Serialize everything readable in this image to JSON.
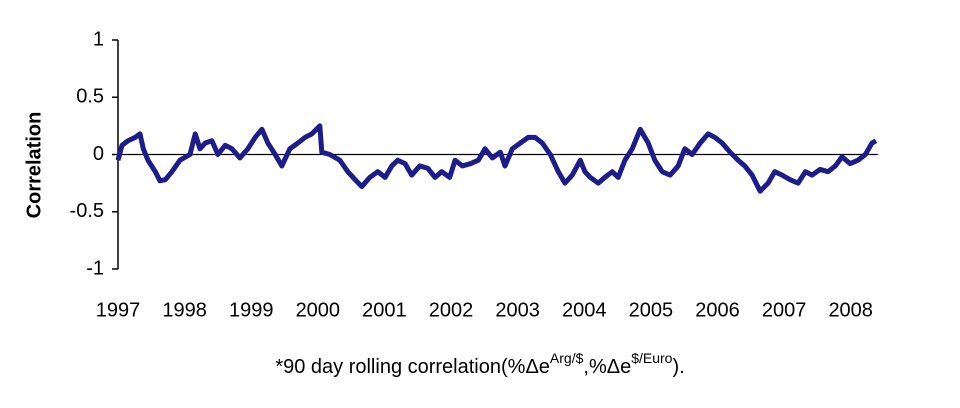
{
  "chart_data": {
    "type": "line",
    "ylabel": "Correlation",
    "caption": [
      "*90 day rolling correlation(%Δe",
      "Arg/$",
      ",%Δe",
      "$/Euro",
      ")."
    ],
    "x": [
      1997.0,
      1997.06,
      1997.15,
      1997.26,
      1997.33,
      1997.38,
      1997.45,
      1997.56,
      1997.63,
      1997.71,
      1997.81,
      1997.93,
      1998.08,
      1998.16,
      1998.23,
      1998.31,
      1998.41,
      1998.5,
      1998.61,
      1998.71,
      1998.83,
      1998.95,
      1999.06,
      1999.16,
      1999.25,
      1999.36,
      1999.46,
      1999.58,
      1999.7,
      1999.81,
      1999.91,
      2000.03,
      2000.06,
      2000.18,
      2000.33,
      2000.45,
      2000.56,
      2000.66,
      2000.78,
      2000.9,
      2001.01,
      2001.11,
      2001.2,
      2001.31,
      2001.41,
      2001.53,
      2001.65,
      2001.76,
      2001.86,
      2001.98,
      2002.06,
      2002.17,
      2002.29,
      2002.41,
      2002.51,
      2002.62,
      2002.74,
      2002.81,
      2002.92,
      2003.04,
      2003.16,
      2003.26,
      2003.37,
      2003.49,
      2003.61,
      2003.71,
      2003.82,
      2003.94,
      2004.01,
      2004.09,
      2004.21,
      2004.31,
      2004.42,
      2004.51,
      2004.61,
      2004.72,
      2004.84,
      2004.96,
      2005.06,
      2005.17,
      2005.29,
      2005.41,
      2005.51,
      2005.62,
      2005.74,
      2005.86,
      2005.96,
      2006.07,
      2006.19,
      2006.31,
      2006.41,
      2006.52,
      2006.64,
      2006.76,
      2006.86,
      2006.97,
      2007.09,
      2007.21,
      2007.32,
      2007.42,
      2007.54,
      2007.66,
      2007.77,
      2007.87,
      2007.99,
      2008.11,
      2008.22,
      2008.32,
      2008.38
    ],
    "series": [
      {
        "name": "Correlation",
        "color": "#1c1c8a",
        "values": [
          -0.05,
          0.08,
          0.12,
          0.15,
          0.18,
          0.05,
          -0.05,
          -0.15,
          -0.23,
          -0.22,
          -0.15,
          -0.05,
          0.0,
          0.18,
          0.05,
          0.1,
          0.12,
          0.0,
          0.08,
          0.05,
          -0.03,
          0.05,
          0.15,
          0.22,
          0.1,
          0.0,
          -0.1,
          0.05,
          0.1,
          0.15,
          0.18,
          0.25,
          0.02,
          0.0,
          -0.05,
          -0.15,
          -0.22,
          -0.28,
          -0.2,
          -0.15,
          -0.2,
          -0.1,
          -0.05,
          -0.08,
          -0.18,
          -0.1,
          -0.12,
          -0.2,
          -0.15,
          -0.2,
          -0.05,
          -0.1,
          -0.08,
          -0.05,
          0.05,
          -0.03,
          0.02,
          -0.1,
          0.05,
          0.1,
          0.15,
          0.15,
          0.1,
          0.0,
          -0.15,
          -0.25,
          -0.18,
          -0.05,
          -0.15,
          -0.2,
          -0.25,
          -0.2,
          -0.15,
          -0.2,
          -0.05,
          0.05,
          0.22,
          0.1,
          -0.05,
          -0.15,
          -0.18,
          -0.1,
          0.05,
          0.0,
          0.1,
          0.18,
          0.15,
          0.1,
          0.02,
          -0.05,
          -0.1,
          -0.18,
          -0.32,
          -0.25,
          -0.15,
          -0.18,
          -0.22,
          -0.25,
          -0.15,
          -0.18,
          -0.13,
          -0.15,
          -0.1,
          -0.02,
          -0.08,
          -0.05,
          0.0,
          0.1,
          0.12
        ]
      }
    ],
    "xlim": [
      1997,
      2008.41
    ],
    "xticks": [
      1997,
      1998,
      1999,
      2000,
      2001,
      2002,
      2003,
      2004,
      2005,
      2006,
      2007,
      2008
    ],
    "ylim": [
      -1,
      1
    ],
    "yticks": [
      -1,
      -0.5,
      0,
      0.5,
      1
    ],
    "zero_line": true
  }
}
